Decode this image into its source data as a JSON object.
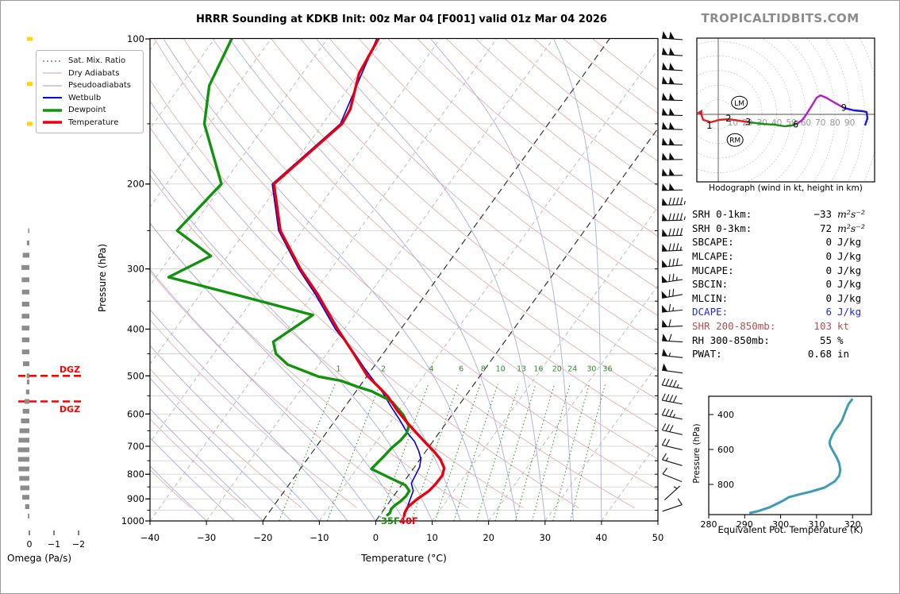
{
  "header": {
    "title": "HRRR Sounding at KDKB Init: 00z Mar 04 [F001] valid 01z Mar 04 2026",
    "watermark": "TROPICALTIDBITS.COM"
  },
  "legend": {
    "items": [
      {
        "label": "Sat. Mix. Ratio",
        "color": "#2e8b2e",
        "style": "dotted",
        "width": 1.2
      },
      {
        "label": "Dry Adiabats",
        "color": "#e3b0b0",
        "style": "solid",
        "width": 1.2
      },
      {
        "label": "Pseudoadiabats",
        "color": "#a9afdc",
        "style": "solid",
        "width": 1.2
      },
      {
        "label": "Wetbulb",
        "color": "#0000dd",
        "style": "solid",
        "width": 2
      },
      {
        "label": "Dewpoint",
        "color": "#12930e",
        "style": "solid",
        "width": 3.5
      },
      {
        "label": "Temperature",
        "color": "#e80012",
        "style": "solid",
        "width": 3.5
      }
    ]
  },
  "skewt": {
    "xlabel": "Temperature (°C)",
    "ylabel": "Pressure (hPa)",
    "x_ticks": [
      -40,
      -30,
      -20,
      -10,
      0,
      10,
      20,
      30,
      40,
      50
    ],
    "p_ticks": [
      100,
      200,
      300,
      400,
      500,
      600,
      700,
      800,
      900,
      1000
    ],
    "dgz_label": "DGZ"
  },
  "omega_axis": {
    "label": "Omega (Pa/s)",
    "ticks": [
      0,
      -1,
      -2
    ]
  },
  "stats": {
    "rows": [
      {
        "label": "SRH 0-1km:",
        "value": "-33",
        "unit": "m²s⁻²",
        "unit_italic": true,
        "color": "#000000"
      },
      {
        "label": "SRH 0-3km:",
        "value": "72",
        "unit": "m²s⁻²",
        "unit_italic": true,
        "color": "#000000"
      },
      {
        "label": "SBCAPE:",
        "value": "0",
        "unit": "J/kg",
        "unit_italic": false,
        "color": "#000000"
      },
      {
        "label": "MLCAPE:",
        "value": "0",
        "unit": "J/kg",
        "unit_italic": false,
        "color": "#000000"
      },
      {
        "label": "MUCAPE:",
        "value": "0",
        "unit": "J/kg",
        "unit_italic": false,
        "color": "#000000"
      },
      {
        "label": "SBCIN:",
        "value": "0",
        "unit": "J/kg",
        "unit_italic": false,
        "color": "#000000"
      },
      {
        "label": "MLCIN:",
        "value": "0",
        "unit": "J/kg",
        "unit_italic": false,
        "color": "#000000"
      },
      {
        "label": "DCAPE:",
        "value": "6",
        "unit": "J/kg",
        "unit_italic": false,
        "color": "#2727d8"
      },
      {
        "label": "SHR 200-850mb:",
        "value": "103",
        "unit": "kt",
        "unit_italic": false,
        "color": "#b25050"
      },
      {
        "label": "RH 300-850mb:",
        "value": "55",
        "unit": "%",
        "unit_italic": false,
        "color": "#000000"
      },
      {
        "label": "PWAT:",
        "value": "0.68",
        "unit": "in",
        "unit_italic": false,
        "color": "#000000"
      }
    ]
  },
  "chart_data": [
    {
      "id": "skewt_sounding",
      "type": "line",
      "title": "HRRR Sounding at KDKB Init: 00z Mar 04 [F001] valid 01z Mar 04 2026",
      "xlabel": "Temperature (°C)",
      "ylabel": "Pressure (hPa)",
      "x_range": [
        -40,
        50
      ],
      "pressure_range_hPa": [
        100,
        1000
      ],
      "y_scale": "log",
      "grid": "50 hPa horizontals, 10C skewed isotherms",
      "highlight_isotherms_C": [
        0,
        -20
      ],
      "mixing_ratio_lines_gkg": [
        1,
        2,
        4,
        6,
        8,
        10,
        13,
        16,
        20,
        24,
        30,
        36
      ],
      "dgz_band_hPa": [
        500,
        565
      ],
      "surface_annotations": [
        {
          "text": "35F",
          "color": "#12930e"
        },
        {
          "text": "40F",
          "color": "#e80012"
        }
      ],
      "series": [
        {
          "name": "Temperature",
          "color": "#e80012",
          "width": 3.4,
          "points_p_T": [
            [
              100,
              -61
            ],
            [
              118,
              -60
            ],
            [
              140,
              -57
            ],
            [
              150,
              -56.6
            ],
            [
              200,
              -61
            ],
            [
              250,
              -53.9
            ],
            [
              300,
              -45.5
            ],
            [
              340,
              -39
            ],
            [
              400,
              -31.2
            ],
            [
              450,
              -25.2
            ],
            [
              500,
              -20
            ],
            [
              527,
              -16.6
            ],
            [
              552,
              -13.7
            ],
            [
              592,
              -10.1
            ],
            [
              628,
              -6.7
            ],
            [
              660,
              -3.7
            ],
            [
              690,
              -1
            ],
            [
              718,
              1.5
            ],
            [
              745,
              3.6
            ],
            [
              777,
              5.4
            ],
            [
              805,
              6
            ],
            [
              840,
              5.9
            ],
            [
              866,
              5.6
            ],
            [
              900,
              4.6
            ],
            [
              935,
              3.9
            ],
            [
              962,
              4.1
            ],
            [
              977,
              4.4
            ]
          ]
        },
        {
          "name": "Dewpoint",
          "color": "#12930e",
          "width": 3.4,
          "points_p_T": [
            [
              100,
              -87
            ],
            [
              125,
              -85
            ],
            [
              150,
              -81
            ],
            [
              200,
              -70.3
            ],
            [
              250,
              -72.2
            ],
            [
              282,
              -63
            ],
            [
              312,
              -67.8
            ],
            [
              340,
              -53.3
            ],
            [
              374,
              -37.4
            ],
            [
              425,
              -41
            ],
            [
              450,
              -39
            ],
            [
              474,
              -35.5
            ],
            [
              502,
              -28.5
            ],
            [
              512,
              -24
            ],
            [
              527,
              -20.3
            ],
            [
              538,
              -17.3
            ],
            [
              557,
              -13.8
            ],
            [
              567,
              -12.2
            ],
            [
              603,
              -8.6
            ],
            [
              636,
              -6.2
            ],
            [
              658,
              -5.7
            ],
            [
              682,
              -5.9
            ],
            [
              706,
              -6.5
            ],
            [
              734,
              -6.8
            ],
            [
              780,
              -7.4
            ],
            [
              818,
              -2.5
            ],
            [
              843,
              0.7
            ],
            [
              866,
              2.1
            ],
            [
              888,
              2.2
            ],
            [
              910,
              1.9
            ],
            [
              928,
              1.4
            ],
            [
              945,
              1.2
            ],
            [
              962,
              1.5
            ],
            [
              972,
              1.3
            ]
          ]
        },
        {
          "name": "Wetbulb",
          "color": "#0000dd",
          "width": 1.6,
          "points_p_T": [
            [
              100,
              -61.3
            ],
            [
              150,
              -56.9
            ],
            [
              200,
              -61.3
            ],
            [
              250,
              -54.2
            ],
            [
              300,
              -45.8
            ],
            [
              340,
              -39.4
            ],
            [
              400,
              -31.6
            ],
            [
              446,
              -25.5
            ],
            [
              480,
              -21.7
            ],
            [
              514,
              -18
            ],
            [
              540,
              -15.3
            ],
            [
              581,
              -11.7
            ],
            [
              615,
              -8.8
            ],
            [
              652,
              -6
            ],
            [
              685,
              -3.2
            ],
            [
              716,
              -1.3
            ],
            [
              744,
              0.1
            ],
            [
              773,
              0.9
            ],
            [
              803,
              1.2
            ],
            [
              835,
              1.5
            ],
            [
              866,
              2.8
            ],
            [
              899,
              3.3
            ],
            [
              934,
              3.8
            ],
            [
              969,
              4.2
            ]
          ]
        }
      ]
    },
    {
      "id": "omega",
      "type": "bar",
      "xlabel": "Omega (Pa/s)",
      "x_ticks": [
        0,
        -1,
        -2
      ],
      "bar_color": "#8c8c8c",
      "upward_marker_color": "#ffd60a",
      "upward_marker_levels_hPa": [
        100,
        124,
        150
      ],
      "bars_p_value": [
        [
          250,
          0.05
        ],
        [
          265,
          0.1
        ],
        [
          281,
          0.27
        ],
        [
          298,
          0.32
        ],
        [
          316,
          0.31
        ],
        [
          335,
          0.3
        ],
        [
          355,
          0.3
        ],
        [
          376,
          0.31
        ],
        [
          398,
          0.31
        ],
        [
          421,
          0.3
        ],
        [
          446,
          0.3
        ],
        [
          472,
          0.26
        ],
        [
          500,
          0.11
        ],
        [
          515,
          0.1
        ],
        [
          540,
          0.14
        ],
        [
          565,
          0.19
        ],
        [
          592,
          0.27
        ],
        [
          620,
          0.34
        ],
        [
          650,
          0.4
        ],
        [
          680,
          0.44
        ],
        [
          712,
          0.47
        ],
        [
          745,
          0.46
        ],
        [
          780,
          0.44
        ],
        [
          816,
          0.41
        ],
        [
          854,
          0.37
        ],
        [
          893,
          0.29
        ],
        [
          934,
          0.17
        ],
        [
          977,
          0.06
        ]
      ]
    },
    {
      "id": "hodograph",
      "type": "line",
      "caption": "Hodograph (wind in kt, height in km)",
      "ring_interval_kt": 10,
      "ring_labels_kt": [
        10,
        20,
        30,
        40,
        50,
        60,
        70,
        80,
        90
      ],
      "segments": [
        {
          "layer": "0-3 km",
          "color": "#e02020",
          "points_u_v_kt": [
            [
              -12,
              1.1
            ],
            [
              -10.3,
              -3.8
            ],
            [
              -4.9,
              -5.4
            ],
            [
              0.5,
              -3.8
            ],
            [
              7.1,
              -3.3
            ],
            [
              14.1,
              -4.3
            ],
            [
              21.2,
              -5.4
            ]
          ]
        },
        {
          "layer": "3-6 km",
          "color": "#169216",
          "points_u_v_kt": [
            [
              21.2,
              -5.4
            ],
            [
              30.4,
              -6.5
            ],
            [
              38.6,
              -7.1
            ],
            [
              45.7,
              -8.2
            ],
            [
              50.5,
              -7.6
            ],
            [
              53.8,
              -6.5
            ]
          ]
        },
        {
          "layer": "6-9 km",
          "color": "#b31fc4",
          "points_u_v_kt": [
            [
              53.8,
              -6.5
            ],
            [
              57.6,
              -3.8
            ],
            [
              60.3,
              0
            ],
            [
              64.1,
              6
            ],
            [
              67.4,
              11.4
            ],
            [
              70.1,
              13
            ],
            [
              73.9,
              11.4
            ],
            [
              79.3,
              8.2
            ],
            [
              86.4,
              4.3
            ]
          ]
        },
        {
          "layer": "9+ km",
          "color": "#1919dd",
          "points_u_v_kt": [
            [
              86.4,
              4.3
            ],
            [
              92.9,
              2.7
            ],
            [
              98.9,
              2.2
            ],
            [
              101.6,
              1.6
            ],
            [
              102.2,
              -2.7
            ],
            [
              100.5,
              -7.6
            ]
          ]
        }
      ],
      "height_labels_km": [
        {
          "label": "1",
          "u": -6,
          "v": -7.5
        },
        {
          "label": "2",
          "u": 7,
          "v": -2.8
        },
        {
          "label": "3",
          "u": 20.5,
          "v": -5.2
        },
        {
          "label": "6",
          "u": 53,
          "v": -6.8
        },
        {
          "label": "9",
          "u": 86,
          "v": 4.5
        }
      ],
      "storm_motion_markers": [
        {
          "label": "LM",
          "u": 14.5,
          "v": 8
        },
        {
          "label": "RM",
          "u": 11.5,
          "v": -17.5
        }
      ]
    },
    {
      "id": "theta_e",
      "type": "line",
      "xlabel": "Equivalent Pot. Temperature (K)",
      "ylabel": "Pressure (hPa)",
      "x_ticks": [
        280,
        290,
        300,
        310,
        320
      ],
      "y_ticks": [
        400,
        600,
        800
      ],
      "color": "#3f9db3",
      "points_p_K": [
        [
          310,
          320
        ],
        [
          340,
          318.9
        ],
        [
          373,
          318.2
        ],
        [
          400,
          317.7
        ],
        [
          432,
          317.1
        ],
        [
          460,
          316.3
        ],
        [
          491,
          315.1
        ],
        [
          520,
          314.3
        ],
        [
          545,
          313.8
        ],
        [
          560,
          313.6
        ],
        [
          580,
          313.8
        ],
        [
          610,
          314.6
        ],
        [
          650,
          315.7
        ],
        [
          680,
          316.3
        ],
        [
          718,
          316.6
        ],
        [
          750,
          316.3
        ],
        [
          782,
          315.1
        ],
        [
          818,
          312.2
        ],
        [
          841,
          308.5
        ],
        [
          855,
          305.6
        ],
        [
          873,
          302.3
        ],
        [
          895,
          300.5
        ],
        [
          932,
          296.8
        ],
        [
          954,
          293.5
        ],
        [
          964,
          291.3
        ]
      ]
    },
    {
      "id": "wind_barbs",
      "type": "table",
      "columns": [
        "pressure_hPa",
        "u_kt",
        "v_kt"
      ],
      "rows": [
        [
          100,
          100,
          -7
        ],
        [
          108,
          101,
          -6
        ],
        [
          116,
          101.5,
          -5
        ],
        [
          124,
          102,
          -4
        ],
        [
          134,
          102,
          -3
        ],
        [
          144,
          102,
          -2.5
        ],
        [
          154,
          102,
          -2.7
        ],
        [
          166,
          101.8,
          -1
        ],
        [
          178,
          101.6,
          1.6
        ],
        [
          192,
          100,
          2
        ],
        [
          206,
          99,
          2.2
        ],
        [
          221,
          96,
          2.5
        ],
        [
          238,
          93,
          2.7
        ],
        [
          256,
          90,
          3.5
        ],
        [
          275,
          86.4,
          4.3
        ],
        [
          296,
          80,
          8
        ],
        [
          318,
          74,
          11
        ],
        [
          342,
          69,
          12.5
        ],
        [
          367,
          66,
          7
        ],
        [
          395,
          62,
          2.5
        ],
        [
          424,
          58.5,
          -3.5
        ],
        [
          456,
          55.5,
          -5.5
        ],
        [
          490,
          52,
          -7
        ],
        [
          527,
          44,
          -7.5
        ],
        [
          567,
          38.5,
          -7
        ],
        [
          609,
          32.5,
          -6.5
        ],
        [
          655,
          27,
          -6
        ],
        [
          704,
          21.5,
          -5
        ],
        [
          757,
          13.5,
          -4
        ],
        [
          814,
          7.5,
          -3
        ],
        [
          875,
          -5.5,
          -5
        ],
        [
          940,
          -10.5,
          -3.5
        ]
      ]
    }
  ]
}
